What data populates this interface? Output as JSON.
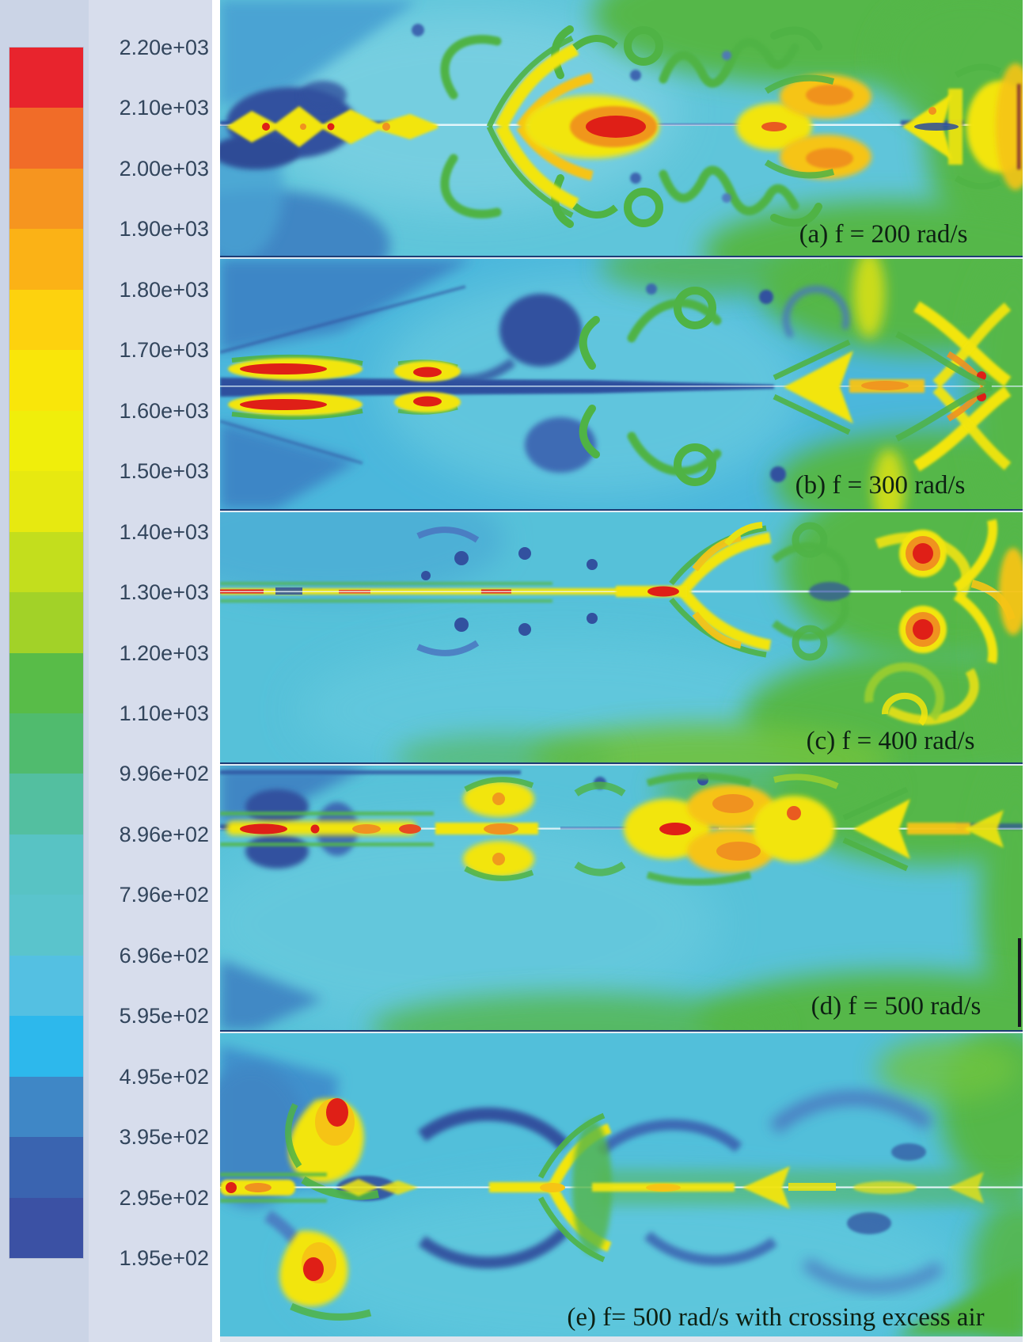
{
  "chart_data": {
    "type": "heatmap",
    "subtype": "CFD temperature contour fields; five stacked panels sharing one discrete rainbow color scale",
    "title": "",
    "colorbar": {
      "orientation": "vertical",
      "position": "left",
      "tick_labels": [
        "2.20e+03",
        "2.10e+03",
        "2.00e+03",
        "1.90e+03",
        "1.80e+03",
        "1.70e+03",
        "1.60e+03",
        "1.50e+03",
        "1.40e+03",
        "1.30e+03",
        "1.20e+03",
        "1.10e+03",
        "9.96e+02",
        "8.96e+02",
        "7.96e+02",
        "6.96e+02",
        "5.95e+02",
        "4.95e+02",
        "3.95e+02",
        "2.95e+02",
        "1.95e+02"
      ],
      "tick_values": [
        2200,
        2100,
        2000,
        1900,
        1800,
        1700,
        1600,
        1500,
        1400,
        1300,
        1200,
        1100,
        996,
        896,
        796,
        696,
        595,
        495,
        395,
        295,
        195
      ],
      "value_range": [
        195,
        2200
      ],
      "band_colors": [
        "#e8242d",
        "#f16c28",
        "#f6951f",
        "#fbb216",
        "#fdd20e",
        "#f9e60a",
        "#f0ee0b",
        "#e7e910",
        "#c3de1d",
        "#a2d228",
        "#58bc48",
        "#50bb6e",
        "#53bfa0",
        "#58c3c4",
        "#5ac4cc",
        "#54c0e2",
        "#2db8ec",
        "#3f87c6",
        "#3a64b0",
        "#3b51a4"
      ],
      "legend_background": "#cbd4e6",
      "tick_text_color": "#32455c"
    },
    "panels": [
      {
        "index": "a",
        "label": "(a) f = 200 rad/s",
        "frequency_rad_s": 200
      },
      {
        "index": "b",
        "label": "(b) f = 300 rad/s",
        "frequency_rad_s": 300
      },
      {
        "index": "c",
        "label": "(c) f = 400 rad/s",
        "frequency_rad_s": 400
      },
      {
        "index": "d",
        "label": "(d) f = 500 rad/s",
        "frequency_rad_s": 500
      },
      {
        "index": "e",
        "label": "(e) f= 500 rad/s with crossing excess air",
        "frequency_rad_s": 500,
        "note": "with crossing excess air"
      }
    ],
    "field_palette": {
      "background_cyan": "#5fc5da",
      "ambient_green": "#55b748",
      "flame_yellow": "#f2e50d",
      "flame_gold": "#f6c415",
      "flame_orange": "#f0921f",
      "flame_red": "#df1f17",
      "cold_navy": "#32519f",
      "cold_blue": "#3f86c4",
      "centerline_white": "#e8f6fa"
    }
  }
}
